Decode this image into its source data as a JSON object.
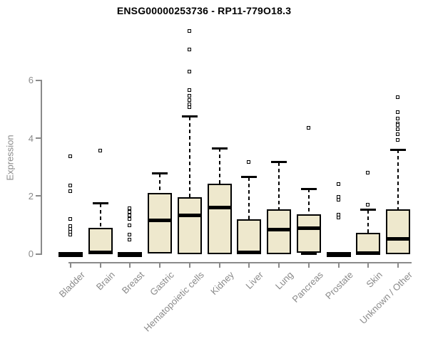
{
  "title": "ENSG00000253736 - RP11-779O18.3",
  "chart_data": {
    "type": "boxplot",
    "title": "ENSG00000253736 - RP11-779O18.3",
    "xlabel": "",
    "ylabel": "Expression",
    "yticks": [
      0,
      2,
      4,
      6
    ],
    "ylim": [
      0,
      8
    ],
    "grid": "off",
    "categories": [
      "Bladder",
      "Brain",
      "Breast",
      "Gastric",
      "Hematopoietic cells",
      "Kidney",
      "Liver",
      "Lung",
      "Pancreas",
      "Prostate",
      "Skin",
      "Unknown / Other"
    ],
    "boxes": [
      {
        "category": "Bladder",
        "q1": 0,
        "median": 0,
        "q3": 0,
        "whisker_low": 0,
        "whisker_high": 0,
        "outliers": [
          3.35,
          2.35,
          2.15,
          1.2,
          0.95,
          0.85,
          0.75,
          0.65
        ]
      },
      {
        "category": "Brain",
        "q1": 0,
        "median": 0.05,
        "q3": 0.9,
        "whisker_low": 0,
        "whisker_high": 1.75,
        "outliers": [
          3.55
        ]
      },
      {
        "category": "Breast",
        "q1": 0,
        "median": 0,
        "q3": 0,
        "whisker_low": 0,
        "whisker_high": 0,
        "outliers": [
          1.57,
          1.45,
          1.33,
          1.2,
          0.98,
          0.66,
          0.49
        ]
      },
      {
        "category": "Gastric",
        "q1": 0.02,
        "median": 1.15,
        "q3": 2.1,
        "whisker_low": 0,
        "whisker_high": 2.78,
        "outliers": []
      },
      {
        "category": "Hematopoietic cells",
        "q1": 0,
        "median": 1.33,
        "q3": 1.97,
        "whisker_low": 0,
        "whisker_high": 4.75,
        "outliers": [
          7.7,
          7.05,
          6.3,
          5.65,
          5.45,
          5.3,
          5.15,
          5.05
        ]
      },
      {
        "category": "Kidney",
        "q1": 0,
        "median": 1.6,
        "q3": 2.42,
        "whisker_low": 0,
        "whisker_high": 3.65,
        "outliers": []
      },
      {
        "category": "Liver",
        "q1": 0,
        "median": 0.05,
        "q3": 1.19,
        "whisker_low": 0,
        "whisker_high": 2.65,
        "outliers": [
          3.17
        ]
      },
      {
        "category": "Lung",
        "q1": 0,
        "median": 0.83,
        "q3": 1.53,
        "whisker_low": 0,
        "whisker_high": 3.17,
        "outliers": []
      },
      {
        "category": "Pancreas",
        "q1": 0.05,
        "median": 0.9,
        "q3": 1.38,
        "whisker_low": 0,
        "whisker_high": 2.25,
        "outliers": [
          4.35
        ]
      },
      {
        "category": "Prostate",
        "q1": 0,
        "median": 0,
        "q3": 0,
        "whisker_low": 0,
        "whisker_high": 0,
        "outliers": [
          2.4,
          1.95,
          1.85,
          1.35,
          1.25
        ]
      },
      {
        "category": "Skin",
        "q1": 0,
        "median": 0.03,
        "q3": 0.72,
        "whisker_low": 0,
        "whisker_high": 1.52,
        "outliers": [
          2.8,
          1.7
        ]
      },
      {
        "category": "Unknown / Other",
        "q1": 0,
        "median": 0.53,
        "q3": 1.53,
        "whisker_low": 0,
        "whisker_high": 3.6,
        "outliers": [
          5.4,
          4.88,
          4.67,
          4.49,
          4.45,
          4.3,
          4.12,
          3.92
        ]
      }
    ],
    "colors": {
      "box_fill": "#EEE8CD",
      "box_border": "#000000",
      "median": "#000000",
      "whisker": "#000000",
      "axis": "#8a8a8a",
      "tick_label": "#8a8a8a",
      "title": "#000000",
      "background": "#ffffff"
    }
  }
}
